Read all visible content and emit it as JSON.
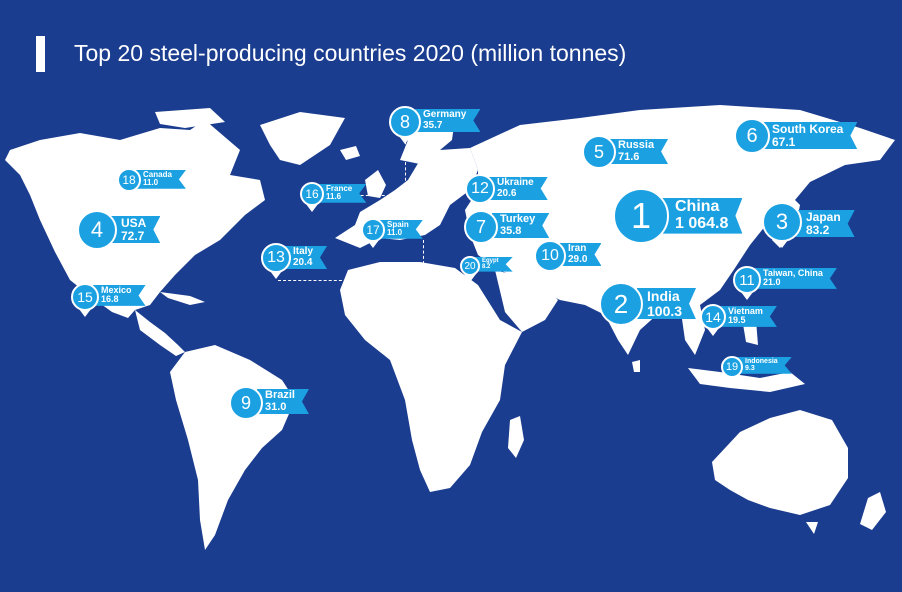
{
  "title": "Top 20 steel-producing countries 2020 (million tonnes)",
  "colors": {
    "ocean": "#1b3d8f",
    "land": "#ffffff",
    "marker": "#1ba1e2"
  },
  "markers": [
    {
      "rank": "1",
      "country": "China",
      "value": "1 064.8"
    },
    {
      "rank": "2",
      "country": "India",
      "value": "100.3"
    },
    {
      "rank": "3",
      "country": "Japan",
      "value": "83.2"
    },
    {
      "rank": "4",
      "country": "USA",
      "value": "72.7"
    },
    {
      "rank": "5",
      "country": "Russia",
      "value": "71.6"
    },
    {
      "rank": "6",
      "country": "South Korea",
      "value": "67.1"
    },
    {
      "rank": "7",
      "country": "Turkey",
      "value": "35.8"
    },
    {
      "rank": "8",
      "country": "Germany",
      "value": "35.7"
    },
    {
      "rank": "9",
      "country": "Brazil",
      "value": "31.0"
    },
    {
      "rank": "10",
      "country": "Iran",
      "value": "29.0"
    },
    {
      "rank": "11",
      "country": "Taiwan, China",
      "value": "21.0"
    },
    {
      "rank": "12",
      "country": "Ukraine",
      "value": "20.6"
    },
    {
      "rank": "13",
      "country": "Italy",
      "value": "20.4"
    },
    {
      "rank": "14",
      "country": "Vietnam",
      "value": "19.5"
    },
    {
      "rank": "15",
      "country": "Mexico",
      "value": "16.8"
    },
    {
      "rank": "16",
      "country": "France",
      "value": "11.6"
    },
    {
      "rank": "17",
      "country": "Spain",
      "value": "11.0"
    },
    {
      "rank": "18",
      "country": "Canada",
      "value": "11.0"
    },
    {
      "rank": "19",
      "country": "Indonesia",
      "value": "9.3"
    },
    {
      "rank": "20",
      "country": "Egypt",
      "value": "8.2"
    }
  ]
}
